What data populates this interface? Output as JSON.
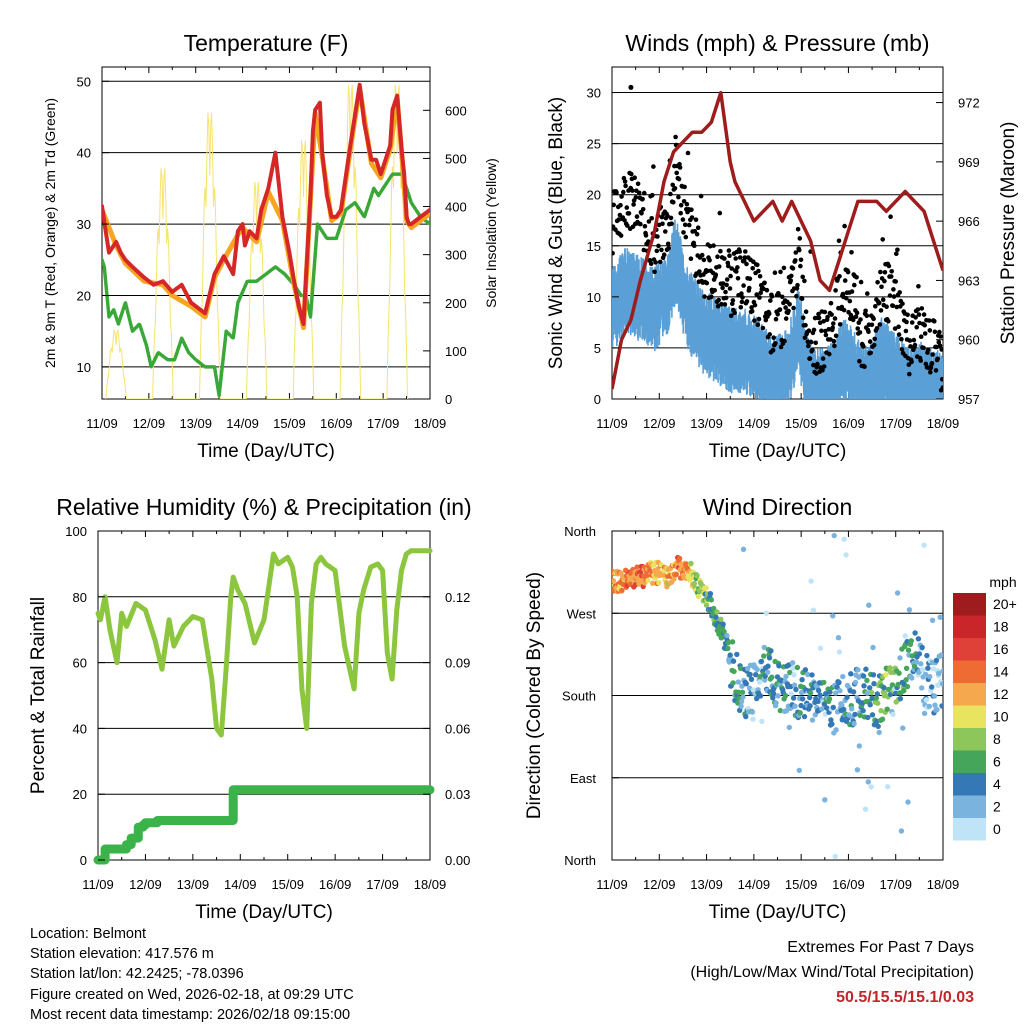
{
  "chart_data": [
    {
      "type": "line",
      "title": "Temperature (F)",
      "xlabel": "Time (Day/UTC)",
      "ylabel": "2m & 9m T (Red, Orange) & 2m Td (Green)",
      "y2label": "Solar Insolation (Yellow)",
      "x_tick_labels": [
        "11/09",
        "12/09",
        "13/09",
        "14/09",
        "15/09",
        "16/09",
        "17/09",
        "18/09"
      ],
      "xlim": [
        0,
        7
      ],
      "ylim": [
        5.5,
        52
      ],
      "ylim2": [
        0,
        690
      ],
      "y_ticks": [
        10,
        20,
        30,
        40,
        50
      ],
      "y2_ticks": [
        0,
        100,
        200,
        300,
        400,
        500,
        600
      ],
      "grid": true,
      "series": [
        {
          "name": "2m T",
          "color": "#d62728",
          "axis": "left",
          "x": [
            0,
            0.08,
            0.15,
            0.3,
            0.4,
            0.5,
            0.65,
            0.9,
            1.1,
            1.3,
            1.5,
            1.7,
            1.9,
            2.2,
            2.4,
            2.6,
            2.8,
            2.9,
            3.0,
            3.05,
            3.15,
            3.3,
            3.4,
            3.55,
            3.7,
            3.85,
            4.0,
            4.1,
            4.2,
            4.3,
            4.35,
            4.45,
            4.5,
            4.55,
            4.65,
            4.7,
            4.8,
            4.9,
            5.0,
            5.1,
            5.3,
            5.5,
            5.6,
            5.75,
            5.85,
            5.95,
            6.05,
            6.15,
            6.2,
            6.3,
            6.4,
            6.45,
            6.5,
            6.55,
            6.6,
            6.7,
            6.8,
            7.0
          ],
          "values": [
            32.5,
            29,
            26,
            27.5,
            26,
            25,
            24,
            22.5,
            21.5,
            22,
            20.5,
            21.5,
            19,
            17.5,
            23,
            25.5,
            23,
            29,
            30,
            27,
            29,
            28,
            32,
            35,
            40,
            31,
            26,
            22,
            18.5,
            16,
            22,
            34,
            43,
            46,
            47,
            40,
            34,
            31,
            31,
            32,
            41,
            49.5,
            44,
            39,
            39,
            37,
            39,
            41,
            46,
            48,
            40,
            37,
            31,
            30,
            30,
            30.5,
            31,
            32
          ]
        },
        {
          "name": "9m T",
          "color": "#f5a51f",
          "axis": "left",
          "x": [
            0,
            0.3,
            0.5,
            0.9,
            1.3,
            1.5,
            1.9,
            2.2,
            2.4,
            2.6,
            2.9,
            3.0,
            3.3,
            3.55,
            3.85,
            4.1,
            4.3,
            4.45,
            4.55,
            4.7,
            4.9,
            5.1,
            5.3,
            5.5,
            5.75,
            5.95,
            6.15,
            6.3,
            6.4,
            6.5,
            6.6,
            7.0
          ],
          "values": [
            32,
            27,
            24.5,
            22,
            21.5,
            20,
            18.5,
            17,
            22.5,
            25,
            28.5,
            29.5,
            27.5,
            34.5,
            30.5,
            21.5,
            15.5,
            33.5,
            45.5,
            39.5,
            30.5,
            31.5,
            40.5,
            49,
            38.5,
            36.5,
            40.5,
            47.5,
            39.5,
            30.5,
            29.5,
            31.5
          ]
        },
        {
          "name": "2m Td",
          "color": "#3aa838",
          "axis": "left",
          "x": [
            0,
            0.05,
            0.15,
            0.25,
            0.35,
            0.5,
            0.65,
            0.8,
            0.95,
            1.05,
            1.2,
            1.4,
            1.55,
            1.7,
            1.85,
            2.0,
            2.2,
            2.4,
            2.5,
            2.65,
            2.8,
            2.9,
            3.1,
            3.3,
            3.5,
            3.7,
            3.9,
            4.1,
            4.25,
            4.35,
            4.45,
            4.6,
            4.8,
            5.0,
            5.2,
            5.4,
            5.6,
            5.8,
            5.9,
            6.0,
            6.2,
            6.4,
            6.6,
            6.8,
            7.0
          ],
          "values": [
            25,
            24,
            17,
            18,
            16,
            19,
            15,
            16,
            13,
            10,
            12,
            11,
            11,
            14,
            12,
            11,
            10,
            10,
            6,
            15,
            14,
            19,
            22,
            22,
            23,
            24,
            23,
            21.5,
            20,
            20,
            17,
            30,
            28,
            28,
            32,
            33,
            31,
            35,
            34,
            35,
            37,
            37,
            33,
            31,
            30
          ]
        },
        {
          "name": "Solar Insolation",
          "color": "#f7e36e",
          "axis": "right",
          "days": [
            0.3,
            1.3,
            2.3,
            3.3,
            4.3,
            5.3,
            6.3
          ],
          "peaks": [
            150,
            500,
            620,
            470,
            560,
            680,
            680
          ]
        }
      ]
    },
    {
      "type": "line",
      "title": "Winds (mph) & Pressure (mb)",
      "xlabel": "Time (Day/UTC)",
      "ylabel": "Sonic Wind & Gust (Blue, Black)",
      "y2label": "Station Pressure (Maroon)",
      "x_tick_labels": [
        "11/09",
        "12/09",
        "13/09",
        "14/09",
        "15/09",
        "16/09",
        "17/09",
        "18/09"
      ],
      "xlim": [
        0,
        7
      ],
      "ylim": [
        0,
        32.5
      ],
      "ylim2": [
        957,
        973.8
      ],
      "y_ticks": [
        0,
        5,
        10,
        15,
        20,
        25,
        30
      ],
      "y2_ticks": [
        957,
        960,
        963,
        966,
        969,
        972
      ],
      "grid": true,
      "series": [
        {
          "name": "Sonic Wind",
          "color": "#5aa0d6",
          "axis": "left",
          "x": [
            0,
            0.3,
            0.6,
            0.9,
            1.2,
            1.35,
            1.6,
            1.9,
            2.2,
            2.5,
            2.8,
            3.1,
            3.4,
            3.7,
            3.95,
            4.1,
            4.3,
            4.5,
            4.7,
            4.9,
            5.1,
            5.3,
            5.5,
            5.7,
            5.9,
            6.1,
            6.3,
            6.5,
            6.7,
            6.9,
            7.0
          ],
          "values": [
            10,
            12,
            11,
            10,
            12,
            15,
            10,
            8,
            7,
            6,
            6,
            5,
            3,
            4,
            8,
            4,
            2,
            2,
            3,
            5,
            4,
            2,
            3,
            5,
            4,
            3,
            2,
            3,
            2,
            2,
            1
          ]
        },
        {
          "name": "Gust",
          "color": "#000000",
          "axis": "left",
          "x": [
            0,
            0.3,
            0.6,
            0.9,
            1.2,
            1.35,
            1.6,
            1.9,
            2.2,
            2.5,
            2.8,
            3.1,
            3.4,
            3.7,
            3.95,
            4.1,
            4.3,
            4.5,
            4.7,
            4.9,
            5.1,
            5.3,
            5.5,
            5.7,
            5.9,
            6.1,
            6.3,
            6.5,
            6.7,
            6.9,
            7.0
          ],
          "values": [
            17,
            20,
            18,
            15,
            17,
            23,
            17,
            13,
            12,
            11,
            12,
            10,
            7,
            8,
            14,
            8,
            5,
            6,
            8,
            11,
            10,
            5,
            7,
            11,
            10,
            8,
            5,
            7,
            5,
            5,
            3
          ]
        },
        {
          "name": "Station Pressure",
          "color": "#9e1c1c",
          "axis": "right",
          "x": [
            0,
            0.2,
            0.4,
            0.6,
            0.9,
            1.1,
            1.3,
            1.5,
            1.7,
            1.9,
            2.1,
            2.3,
            2.5,
            2.6,
            2.8,
            3.0,
            3.2,
            3.4,
            3.6,
            3.8,
            4.0,
            4.2,
            4.4,
            4.6,
            4.8,
            5.0,
            5.2,
            5.4,
            5.6,
            5.8,
            6.0,
            6.2,
            6.4,
            6.6,
            6.8,
            7.0
          ],
          "values": [
            957.5,
            960,
            961,
            963,
            965.5,
            968,
            969.5,
            970,
            970.5,
            970.5,
            971,
            972.5,
            969,
            968,
            967,
            966,
            966.5,
            967,
            966,
            967,
            966,
            965,
            963,
            962.5,
            964,
            965.5,
            967,
            967,
            967,
            966.5,
            967,
            967.5,
            967,
            966.5,
            965,
            963.5
          ]
        },
        {
          "name": "Gust (max)",
          "color": "#000000",
          "axis": "left",
          "x": [
            0.4
          ],
          "values": [
            30.5
          ]
        }
      ]
    },
    {
      "type": "line",
      "title": "Relative Humidity (%) & Precipitation (in)",
      "xlabel": "Time (Day/UTC)",
      "ylabel": "Percent & Total Rainfall",
      "x_tick_labels": [
        "11/09",
        "12/09",
        "13/09",
        "14/09",
        "15/09",
        "16/09",
        "17/09",
        "18/09"
      ],
      "xlim": [
        0,
        7
      ],
      "ylim": [
        0,
        100
      ],
      "ylim2": [
        0,
        0.15
      ],
      "y_ticks": [
        0,
        20,
        40,
        60,
        80,
        100
      ],
      "y2_ticks": [
        "0.00",
        "0.03",
        "0.06",
        "0.09",
        "0.12"
      ],
      "grid": true,
      "series": [
        {
          "name": "Relative Humidity",
          "color": "#8cc63f",
          "axis": "left",
          "x": [
            0,
            0.05,
            0.15,
            0.25,
            0.4,
            0.5,
            0.6,
            0.8,
            1.0,
            1.2,
            1.35,
            1.5,
            1.6,
            1.8,
            2.0,
            2.2,
            2.4,
            2.5,
            2.6,
            2.7,
            2.8,
            2.85,
            2.95,
            3.1,
            3.3,
            3.5,
            3.7,
            3.8,
            4.0,
            4.1,
            4.2,
            4.3,
            4.4,
            4.5,
            4.6,
            4.7,
            4.8,
            5.0,
            5.2,
            5.4,
            5.5,
            5.6,
            5.75,
            5.9,
            6.0,
            6.1,
            6.2,
            6.3,
            6.4,
            6.5,
            6.6,
            6.8,
            7.0
          ],
          "values": [
            75,
            73,
            80,
            70,
            60,
            75,
            71,
            78,
            76,
            67,
            58,
            73,
            65,
            71,
            74,
            73,
            55,
            40,
            38,
            58,
            80,
            86,
            82,
            78,
            66,
            73,
            93,
            90,
            92,
            89,
            80,
            52,
            40,
            78,
            90,
            92,
            90,
            88,
            65,
            52,
            75,
            82,
            89,
            90,
            88,
            63,
            55,
            76,
            88,
            93,
            94,
            94,
            94
          ]
        },
        {
          "name": "Total Precipitation",
          "color": "#3bb34a",
          "axis": "right",
          "x": [
            0,
            0.1,
            0.15,
            0.5,
            0.6,
            0.7,
            0.85,
            0.95,
            1.0,
            1.15,
            1.25,
            1.5,
            2.0,
            2.5,
            2.8,
            2.85,
            3.0,
            4.0,
            5.0,
            6.0,
            7.0
          ],
          "values": [
            0,
            0,
            0.005,
            0.005,
            0.007,
            0.01,
            0.015,
            0.016,
            0.017,
            0.017,
            0.018,
            0.018,
            0.018,
            0.018,
            0.018,
            0.032,
            0.032,
            0.032,
            0.032,
            0.032,
            0.032
          ]
        }
      ]
    },
    {
      "type": "scatter",
      "title": "Wind Direction",
      "xlabel": "Time (Day/UTC)",
      "ylabel": "Direction (Colored By Speed)",
      "x_tick_labels": [
        "11/09",
        "12/09",
        "13/09",
        "14/09",
        "15/09",
        "16/09",
        "17/09",
        "18/09"
      ],
      "xlim": [
        0,
        7
      ],
      "ylim": [
        0,
        360
      ],
      "y_tick_labels": [
        "North",
        "East",
        "South",
        "West",
        "North"
      ],
      "grid": true,
      "centers_x": [
        0,
        0.3,
        0.6,
        0.9,
        1.2,
        1.4,
        1.6,
        1.8,
        2.0,
        2.2,
        2.4,
        2.6,
        2.8,
        3.0,
        3.2,
        3.4,
        3.6,
        3.8,
        4.0,
        4.2,
        4.4,
        4.6,
        4.8,
        5.0,
        5.2,
        5.4,
        5.6,
        5.8,
        6.0,
        6.2,
        6.4,
        6.6,
        6.8,
        7.0
      ],
      "centers_deg": [
        305,
        305,
        310,
        315,
        310,
        320,
        320,
        300,
        290,
        265,
        240,
        200,
        185,
        190,
        215,
        195,
        185,
        190,
        180,
        180,
        175,
        160,
        170,
        175,
        180,
        185,
        175,
        180,
        195,
        210,
        225,
        200,
        190,
        195
      ],
      "speeds": [
        12,
        13,
        14,
        12,
        11,
        14,
        12,
        8,
        7,
        6,
        5,
        4,
        3,
        3,
        3,
        5,
        4,
        3,
        4,
        4,
        3,
        3,
        3,
        4,
        3,
        5,
        6,
        7,
        6,
        5,
        4,
        2,
        2,
        1
      ],
      "legend": {
        "title": "mph",
        "labels": [
          "20+",
          "18",
          "16",
          "14",
          "12",
          "10",
          "8",
          "6",
          "4",
          "2",
          "0"
        ],
        "colors": [
          "#9e1b1e",
          "#c8262a",
          "#df4038",
          "#ee6b33",
          "#f6a84e",
          "#e8e45f",
          "#8dc65a",
          "#45a55a",
          "#3478b5",
          "#7ab3dd",
          "#bfe4f7"
        ]
      }
    }
  ],
  "info": {
    "location": "Location: Belmont",
    "elevation": "Station elevation: 417.576 m",
    "latlon": "Station lat/lon: 42.2425; -78.0396",
    "created": "Figure created on Wed, 2026-02-18, at 09:29 UTC",
    "timestamp": "Most recent data timestamp: 2026/02/18 09:15:00"
  },
  "extremes": {
    "line1": "Extremes For Past 7 Days",
    "line2": "(High/Low/Max Wind/Total Precipitation)",
    "values": "50.5/15.5/15.1/0.03"
  }
}
